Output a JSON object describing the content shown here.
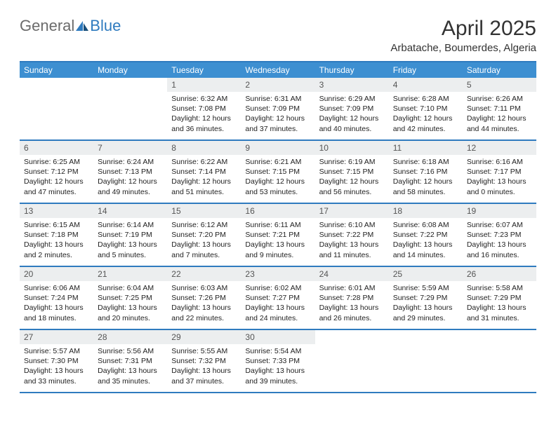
{
  "logo": {
    "part1": "General",
    "part2": "Blue"
  },
  "title": "April 2025",
  "location": "Arbatache, Boumerdes, Algeria",
  "colors": {
    "header_bg": "#3d8fd1",
    "border": "#2f7bbf",
    "daynum_bg": "#eceeef",
    "text": "#222222",
    "logo_gray": "#6b6b6b",
    "logo_blue": "#2f7bbf"
  },
  "days_of_week": [
    "Sunday",
    "Monday",
    "Tuesday",
    "Wednesday",
    "Thursday",
    "Friday",
    "Saturday"
  ],
  "weeks": [
    [
      null,
      null,
      {
        "n": "1",
        "sr": "Sunrise: 6:32 AM",
        "ss": "Sunset: 7:08 PM",
        "dl1": "Daylight: 12 hours",
        "dl2": "and 36 minutes."
      },
      {
        "n": "2",
        "sr": "Sunrise: 6:31 AM",
        "ss": "Sunset: 7:09 PM",
        "dl1": "Daylight: 12 hours",
        "dl2": "and 37 minutes."
      },
      {
        "n": "3",
        "sr": "Sunrise: 6:29 AM",
        "ss": "Sunset: 7:09 PM",
        "dl1": "Daylight: 12 hours",
        "dl2": "and 40 minutes."
      },
      {
        "n": "4",
        "sr": "Sunrise: 6:28 AM",
        "ss": "Sunset: 7:10 PM",
        "dl1": "Daylight: 12 hours",
        "dl2": "and 42 minutes."
      },
      {
        "n": "5",
        "sr": "Sunrise: 6:26 AM",
        "ss": "Sunset: 7:11 PM",
        "dl1": "Daylight: 12 hours",
        "dl2": "and 44 minutes."
      }
    ],
    [
      {
        "n": "6",
        "sr": "Sunrise: 6:25 AM",
        "ss": "Sunset: 7:12 PM",
        "dl1": "Daylight: 12 hours",
        "dl2": "and 47 minutes."
      },
      {
        "n": "7",
        "sr": "Sunrise: 6:24 AM",
        "ss": "Sunset: 7:13 PM",
        "dl1": "Daylight: 12 hours",
        "dl2": "and 49 minutes."
      },
      {
        "n": "8",
        "sr": "Sunrise: 6:22 AM",
        "ss": "Sunset: 7:14 PM",
        "dl1": "Daylight: 12 hours",
        "dl2": "and 51 minutes."
      },
      {
        "n": "9",
        "sr": "Sunrise: 6:21 AM",
        "ss": "Sunset: 7:15 PM",
        "dl1": "Daylight: 12 hours",
        "dl2": "and 53 minutes."
      },
      {
        "n": "10",
        "sr": "Sunrise: 6:19 AM",
        "ss": "Sunset: 7:15 PM",
        "dl1": "Daylight: 12 hours",
        "dl2": "and 56 minutes."
      },
      {
        "n": "11",
        "sr": "Sunrise: 6:18 AM",
        "ss": "Sunset: 7:16 PM",
        "dl1": "Daylight: 12 hours",
        "dl2": "and 58 minutes."
      },
      {
        "n": "12",
        "sr": "Sunrise: 6:16 AM",
        "ss": "Sunset: 7:17 PM",
        "dl1": "Daylight: 13 hours",
        "dl2": "and 0 minutes."
      }
    ],
    [
      {
        "n": "13",
        "sr": "Sunrise: 6:15 AM",
        "ss": "Sunset: 7:18 PM",
        "dl1": "Daylight: 13 hours",
        "dl2": "and 2 minutes."
      },
      {
        "n": "14",
        "sr": "Sunrise: 6:14 AM",
        "ss": "Sunset: 7:19 PM",
        "dl1": "Daylight: 13 hours",
        "dl2": "and 5 minutes."
      },
      {
        "n": "15",
        "sr": "Sunrise: 6:12 AM",
        "ss": "Sunset: 7:20 PM",
        "dl1": "Daylight: 13 hours",
        "dl2": "and 7 minutes."
      },
      {
        "n": "16",
        "sr": "Sunrise: 6:11 AM",
        "ss": "Sunset: 7:21 PM",
        "dl1": "Daylight: 13 hours",
        "dl2": "and 9 minutes."
      },
      {
        "n": "17",
        "sr": "Sunrise: 6:10 AM",
        "ss": "Sunset: 7:22 PM",
        "dl1": "Daylight: 13 hours",
        "dl2": "and 11 minutes."
      },
      {
        "n": "18",
        "sr": "Sunrise: 6:08 AM",
        "ss": "Sunset: 7:22 PM",
        "dl1": "Daylight: 13 hours",
        "dl2": "and 14 minutes."
      },
      {
        "n": "19",
        "sr": "Sunrise: 6:07 AM",
        "ss": "Sunset: 7:23 PM",
        "dl1": "Daylight: 13 hours",
        "dl2": "and 16 minutes."
      }
    ],
    [
      {
        "n": "20",
        "sr": "Sunrise: 6:06 AM",
        "ss": "Sunset: 7:24 PM",
        "dl1": "Daylight: 13 hours",
        "dl2": "and 18 minutes."
      },
      {
        "n": "21",
        "sr": "Sunrise: 6:04 AM",
        "ss": "Sunset: 7:25 PM",
        "dl1": "Daylight: 13 hours",
        "dl2": "and 20 minutes."
      },
      {
        "n": "22",
        "sr": "Sunrise: 6:03 AM",
        "ss": "Sunset: 7:26 PM",
        "dl1": "Daylight: 13 hours",
        "dl2": "and 22 minutes."
      },
      {
        "n": "23",
        "sr": "Sunrise: 6:02 AM",
        "ss": "Sunset: 7:27 PM",
        "dl1": "Daylight: 13 hours",
        "dl2": "and 24 minutes."
      },
      {
        "n": "24",
        "sr": "Sunrise: 6:01 AM",
        "ss": "Sunset: 7:28 PM",
        "dl1": "Daylight: 13 hours",
        "dl2": "and 26 minutes."
      },
      {
        "n": "25",
        "sr": "Sunrise: 5:59 AM",
        "ss": "Sunset: 7:29 PM",
        "dl1": "Daylight: 13 hours",
        "dl2": "and 29 minutes."
      },
      {
        "n": "26",
        "sr": "Sunrise: 5:58 AM",
        "ss": "Sunset: 7:29 PM",
        "dl1": "Daylight: 13 hours",
        "dl2": "and 31 minutes."
      }
    ],
    [
      {
        "n": "27",
        "sr": "Sunrise: 5:57 AM",
        "ss": "Sunset: 7:30 PM",
        "dl1": "Daylight: 13 hours",
        "dl2": "and 33 minutes."
      },
      {
        "n": "28",
        "sr": "Sunrise: 5:56 AM",
        "ss": "Sunset: 7:31 PM",
        "dl1": "Daylight: 13 hours",
        "dl2": "and 35 minutes."
      },
      {
        "n": "29",
        "sr": "Sunrise: 5:55 AM",
        "ss": "Sunset: 7:32 PM",
        "dl1": "Daylight: 13 hours",
        "dl2": "and 37 minutes."
      },
      {
        "n": "30",
        "sr": "Sunrise: 5:54 AM",
        "ss": "Sunset: 7:33 PM",
        "dl1": "Daylight: 13 hours",
        "dl2": "and 39 minutes."
      },
      null,
      null,
      null
    ]
  ]
}
